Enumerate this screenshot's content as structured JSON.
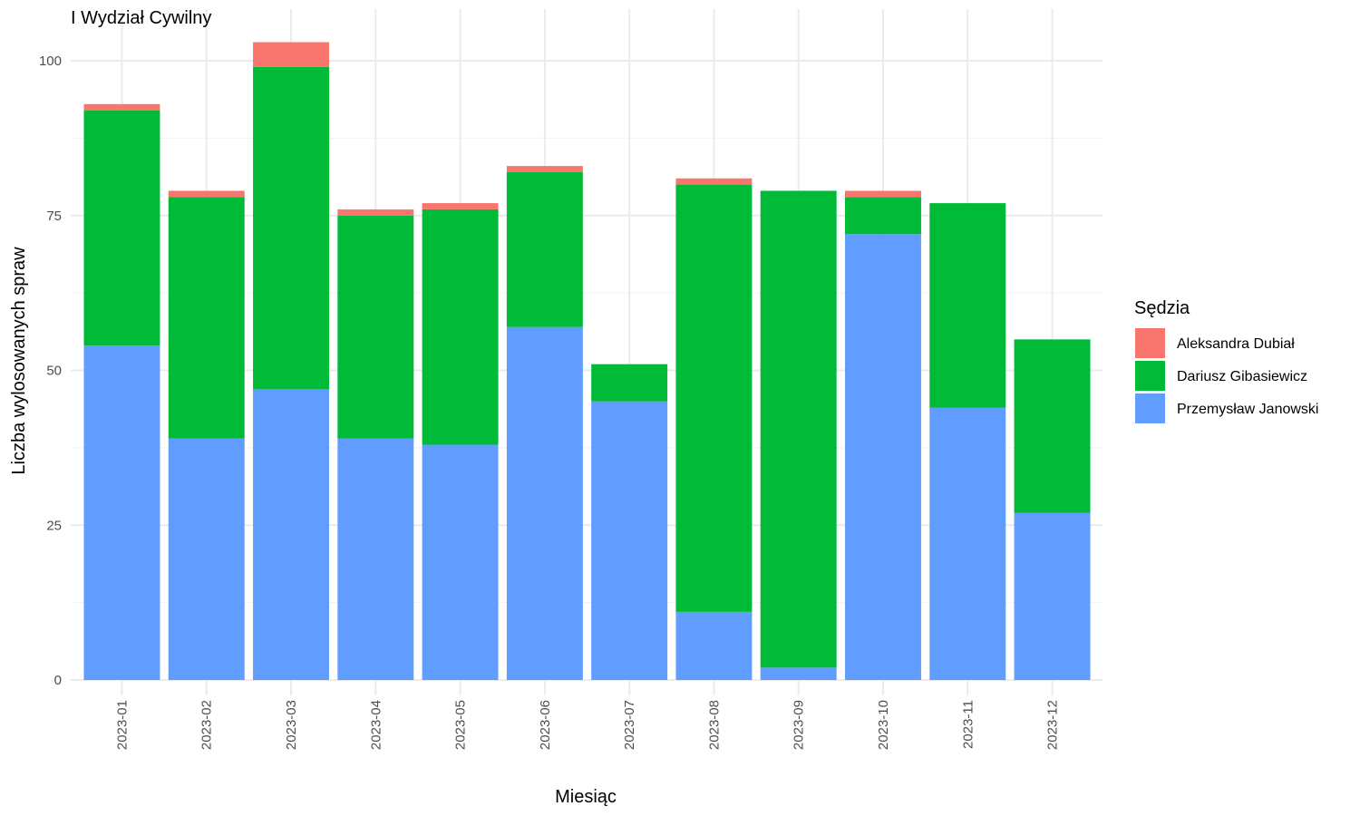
{
  "chart_data": {
    "type": "bar",
    "stacked": true,
    "title": "I Wydział Cywilny",
    "xlabel": "Miesiąc",
    "ylabel": "Liczba wylosowanych spraw",
    "ylim": [
      0,
      104
    ],
    "yticks": [
      0,
      25,
      50,
      75,
      100
    ],
    "grid": true,
    "legend": {
      "title": "Sędzia",
      "position": "right"
    },
    "categories": [
      "2023-01",
      "2023-02",
      "2023-03",
      "2023-04",
      "2023-05",
      "2023-06",
      "2023-07",
      "2023-08",
      "2023-09",
      "2023-10",
      "2023-11",
      "2023-12"
    ],
    "series": [
      {
        "name": "Przemysław Janowski",
        "color": "#619CFF",
        "values": [
          54,
          39,
          47,
          39,
          38,
          57,
          45,
          11,
          2,
          72,
          44,
          27
        ]
      },
      {
        "name": "Dariusz Gibasiewicz",
        "color": "#00BA38",
        "values": [
          38,
          39,
          52,
          36,
          38,
          25,
          6,
          69,
          77,
          6,
          33,
          28
        ]
      },
      {
        "name": "Aleksandra Dubiał",
        "color": "#F8766D",
        "values": [
          1,
          1,
          4,
          1,
          1,
          1,
          0,
          1,
          0,
          1,
          0,
          0
        ]
      }
    ],
    "legend_order": [
      "Aleksandra Dubiał",
      "Dariusz Gibasiewicz",
      "Przemysław Janowski"
    ]
  }
}
